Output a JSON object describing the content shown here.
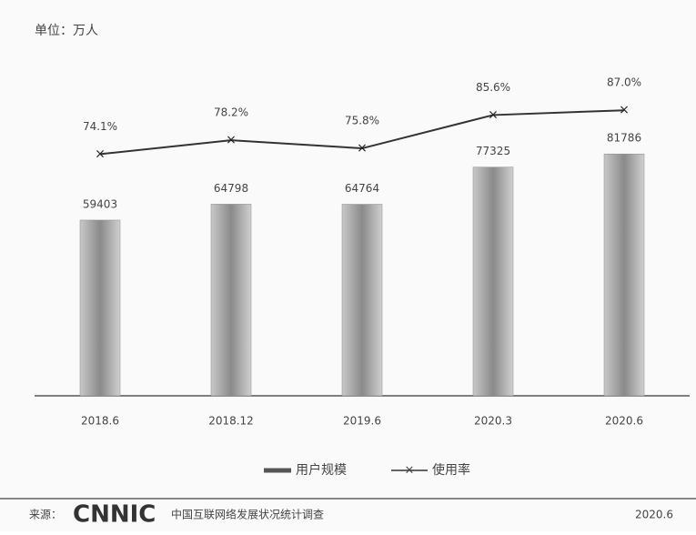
{
  "chart_data": {
    "type": "bar_line",
    "unit": "单位：万人",
    "categories": [
      "2018.6",
      "2018.12",
      "2019.6",
      "2020.3",
      "2020.6"
    ],
    "series": [
      {
        "name": "用户规模",
        "color": "#8a8a8a",
        "values": [
          59403,
          64798,
          64764,
          77325,
          81786
        ]
      },
      {
        "name": "使用率",
        "color": "#333333",
        "axis": "y2",
        "values": [
          74.1,
          78.2,
          75.8,
          85.6,
          87.0
        ],
        "value_labels": [
          "74.1%",
          "78.2%",
          "75.8%",
          "85.6%",
          "87.0%"
        ]
      }
    ],
    "ylim": [
      0,
      100000
    ],
    "y2lim": [
      3,
      90
    ],
    "source": "来源：",
    "logo": "CNNIC",
    "source_name": "中国互联网络发展状况统计调查",
    "date": "2020.6"
  }
}
